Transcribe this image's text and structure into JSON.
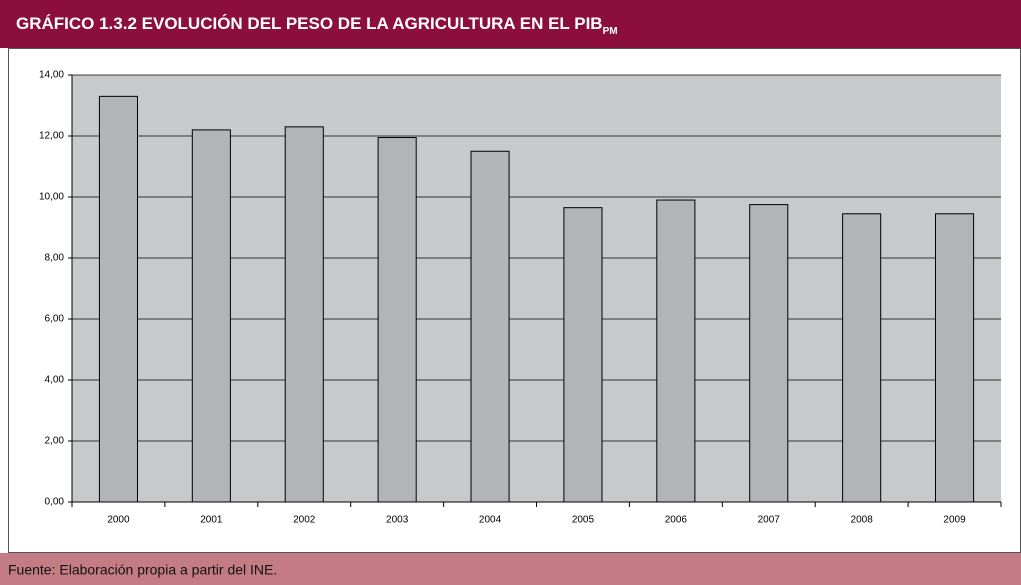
{
  "chart_data": {
    "type": "bar",
    "title": "GRÁFICO 1.3.2 EVOLUCIÓN DEL PESO DE LA AGRICULTURA EN EL PIB",
    "title_subscript": "PM",
    "categories": [
      "2000",
      "2001",
      "2002",
      "2003",
      "2004",
      "2005",
      "2006",
      "2007",
      "2008",
      "2009"
    ],
    "values": [
      13.3,
      12.2,
      12.3,
      11.95,
      11.5,
      9.65,
      9.9,
      9.75,
      9.45,
      9.45
    ],
    "color": "#b3b4b8",
    "ylim": [
      0,
      14
    ],
    "yticks": [
      {
        "value": 0,
        "label": "0,00"
      },
      {
        "value": 2,
        "label": "2,00"
      },
      {
        "value": 4,
        "label": "4,00"
      },
      {
        "value": 6,
        "label": "6,00"
      },
      {
        "value": 8,
        "label": "8,00"
      },
      {
        "value": 10,
        "label": "10,00"
      },
      {
        "value": 12,
        "label": "12,00"
      },
      {
        "value": 14,
        "label": "14,00"
      }
    ],
    "grid": true,
    "source": "Fuente: Elaboración propia a partir del INE."
  }
}
